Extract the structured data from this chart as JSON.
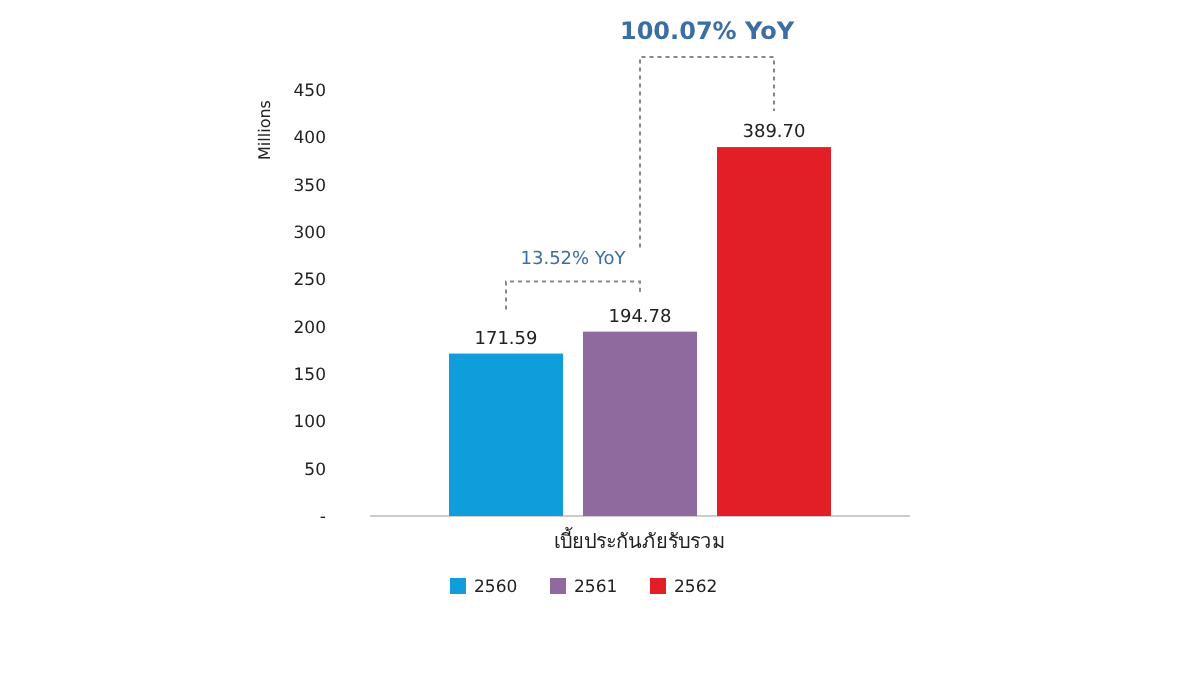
{
  "chart_data": {
    "type": "bar",
    "ylabel": "Millions",
    "categories": [
      "เบี้ยประกันภัยรับรวม"
    ],
    "series": [
      {
        "name": "2560",
        "color": "#0f9edb",
        "values": [
          171.59
        ],
        "value_labels": [
          "171.59"
        ]
      },
      {
        "name": "2561",
        "color": "#8e6a9e",
        "values": [
          194.78
        ],
        "value_labels": [
          "194.78"
        ]
      },
      {
        "name": "2562",
        "color": "#e21f26",
        "values": [
          389.7
        ],
        "value_labels": [
          "389.70"
        ]
      }
    ],
    "ylim": [
      0,
      450
    ],
    "yticks": [
      {
        "value": 0,
        "label": "-"
      },
      50,
      100,
      150,
      200,
      250,
      300,
      350,
      400,
      450
    ],
    "legend": "bottom",
    "annotations": [
      "13.52% YoY",
      "100.07% YoY"
    ]
  }
}
